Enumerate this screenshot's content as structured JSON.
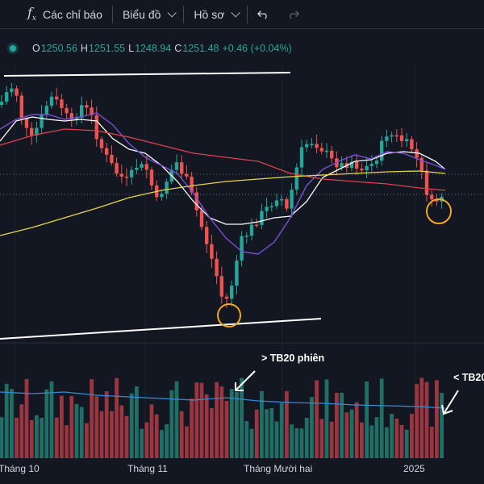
{
  "toolbar": {
    "indicators_label": "Các chỉ báo",
    "chart_label": "Biểu đồ",
    "profile_label": "Hồ sơ",
    "icons": [
      "fx-icon",
      "undo-icon",
      "redo-icon"
    ]
  },
  "legend": {
    "o_key": "O",
    "o_val": "1250.56",
    "h_key": "H",
    "h_val": "1251.55",
    "l_key": "L",
    "l_val": "1248.94",
    "c_key": "C",
    "c_val": "1251.48",
    "change": "+0.46 (+0.04%)"
  },
  "colors": {
    "background": "#131722",
    "up": "#26a69a",
    "down": "#ef5350",
    "ma_short": "#ffffff",
    "ma_purple": "#7b4fd6",
    "ma_red": "#e0414f",
    "ma_yellow": "#e8d44d",
    "volume_avg": "#2f8fd8",
    "highlight": "#f5a623"
  },
  "x_axis": {
    "labels": [
      "Tháng 10",
      "Tháng 11",
      "Tháng Mười hai",
      "2025"
    ]
  },
  "annotations": {
    "left": "> TB20 phiên",
    "right": "< TB20"
  },
  "chart_data": {
    "type": "candlestick",
    "series_shown": [
      "price",
      "moving averages",
      "volume",
      "volume average"
    ]
  }
}
